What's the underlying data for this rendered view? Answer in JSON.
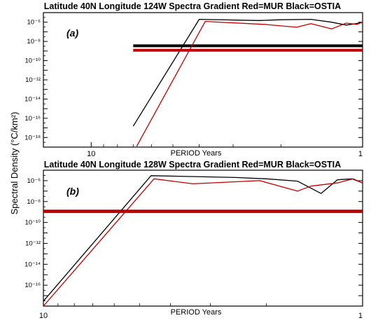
{
  "ylabel": "Spectral Density (°C/km²)",
  "colors": {
    "MUR": "#c00000",
    "OSTIA": "#000000",
    "axes": "#000000"
  },
  "chart_data": [
    {
      "type": "line",
      "title": "Latitude 40N Longitude 124W Spectra Gradient Red=MUR Black=OSTIA",
      "panel_label": "(a)",
      "xlabel": "PERIOD Years",
      "xscale": "log",
      "xreversed": true,
      "xlim": [
        15,
        1
      ],
      "x_ticks": [
        {
          "value": 10,
          "label": "10"
        },
        {
          "value": 1,
          "label": "1"
        }
      ],
      "yscale": "log",
      "ylim": [
        1e-19,
        1e-05
      ],
      "y_ticks": [
        {
          "value": 1e-06,
          "label": "10⁻⁶"
        },
        {
          "value": 1e-08,
          "label": "10⁻⁸"
        },
        {
          "value": 1e-10,
          "label": "10⁻¹⁰"
        },
        {
          "value": 1e-12,
          "label": "10⁻¹²"
        },
        {
          "value": 1e-14,
          "label": "10⁻¹⁴"
        },
        {
          "value": 1e-16,
          "label": "10⁻¹⁶"
        },
        {
          "value": 1e-18,
          "label": "10⁻¹⁸"
        }
      ],
      "series": [
        {
          "name": "OSTIA",
          "color": "#000000",
          "x": [
            7.0,
            4.0,
            2.4,
            2.0,
            1.55,
            1.3,
            1.15,
            1.06,
            1.0
          ],
          "y": [
            1.5e-17,
            2e-06,
            1.5e-06,
            1.8e-06,
            2e-06,
            1e-06,
            5e-07,
            7e-07,
            1e-06
          ]
        },
        {
          "name": "OSTIA reference level",
          "color": "#000000",
          "style": "thick-horizontal",
          "x": [
            7.0,
            1.0
          ],
          "y": [
            3.5e-09,
            3.5e-09
          ]
        },
        {
          "name": "MUR",
          "color": "#c00000",
          "x": [
            6.8,
            3.8,
            2.3,
            1.75,
            1.55,
            1.3,
            1.15,
            1.05,
            1.0
          ],
          "y": [
            1.2e-19,
            1.2e-06,
            6e-07,
            3e-07,
            7e-07,
            2e-07,
            8e-07,
            6e-07,
            1e-06
          ]
        },
        {
          "name": "MUR reference level",
          "color": "#c00000",
          "style": "thick-horizontal",
          "x": [
            7.0,
            1.0
          ],
          "y": [
            1.2e-09,
            1.2e-09
          ]
        }
      ]
    },
    {
      "type": "line",
      "title": "Latitude 40N Longitude 128W Spectra Gradient Red=MUR Black=OSTIA",
      "panel_label": "(b)",
      "xlabel": "PERIOD Years",
      "xscale": "log",
      "xreversed": true,
      "xlim": [
        10,
        1
      ],
      "x_ticks": [
        {
          "value": 10,
          "label": "10"
        },
        {
          "value": 1,
          "label": "1"
        }
      ],
      "yscale": "log",
      "ylim": [
        1e-18,
        1e-05
      ],
      "y_ticks": [
        {
          "value": 1e-06,
          "label": "10⁻⁶"
        },
        {
          "value": 1e-08,
          "label": "10⁻⁸"
        },
        {
          "value": 1e-10,
          "label": "10⁻¹⁰"
        },
        {
          "value": 1e-12,
          "label": "10⁻¹²"
        },
        {
          "value": 1e-14,
          "label": "10⁻¹⁴"
        },
        {
          "value": 1e-16,
          "label": "10⁻¹⁶"
        }
      ],
      "series": [
        {
          "name": "OSTIA",
          "color": "#000000",
          "x": [
            10.0,
            4.6,
            2.5,
            2.0,
            1.6,
            1.35,
            1.2,
            1.08,
            1.0
          ],
          "y": [
            3e-18,
            3e-06,
            2e-06,
            1.5e-06,
            9e-07,
            6e-08,
            1.2e-06,
            1.5e-06,
            6e-07
          ]
        },
        {
          "name": "MUR",
          "color": "#c00000",
          "x": [
            10.0,
            4.5,
            3.4,
            2.1,
            1.6,
            1.45,
            1.2,
            1.07,
            1.0
          ],
          "y": [
            1e-18,
            1.5e-06,
            5e-07,
            1e-06,
            1e-07,
            3e-07,
            6e-07,
            1.5e-06,
            6e-07
          ]
        },
        {
          "name": "OSTIA reference level",
          "color": "#000000",
          "style": "thick-horizontal",
          "x": [
            10.0,
            1.0
          ],
          "y": [
            1.2e-09,
            1.2e-09
          ]
        },
        {
          "name": "MUR reference level",
          "color": "#c00000",
          "style": "thick-horizontal",
          "x": [
            10.0,
            1.0
          ],
          "y": [
            1.1e-09,
            1.1e-09
          ]
        }
      ]
    }
  ]
}
